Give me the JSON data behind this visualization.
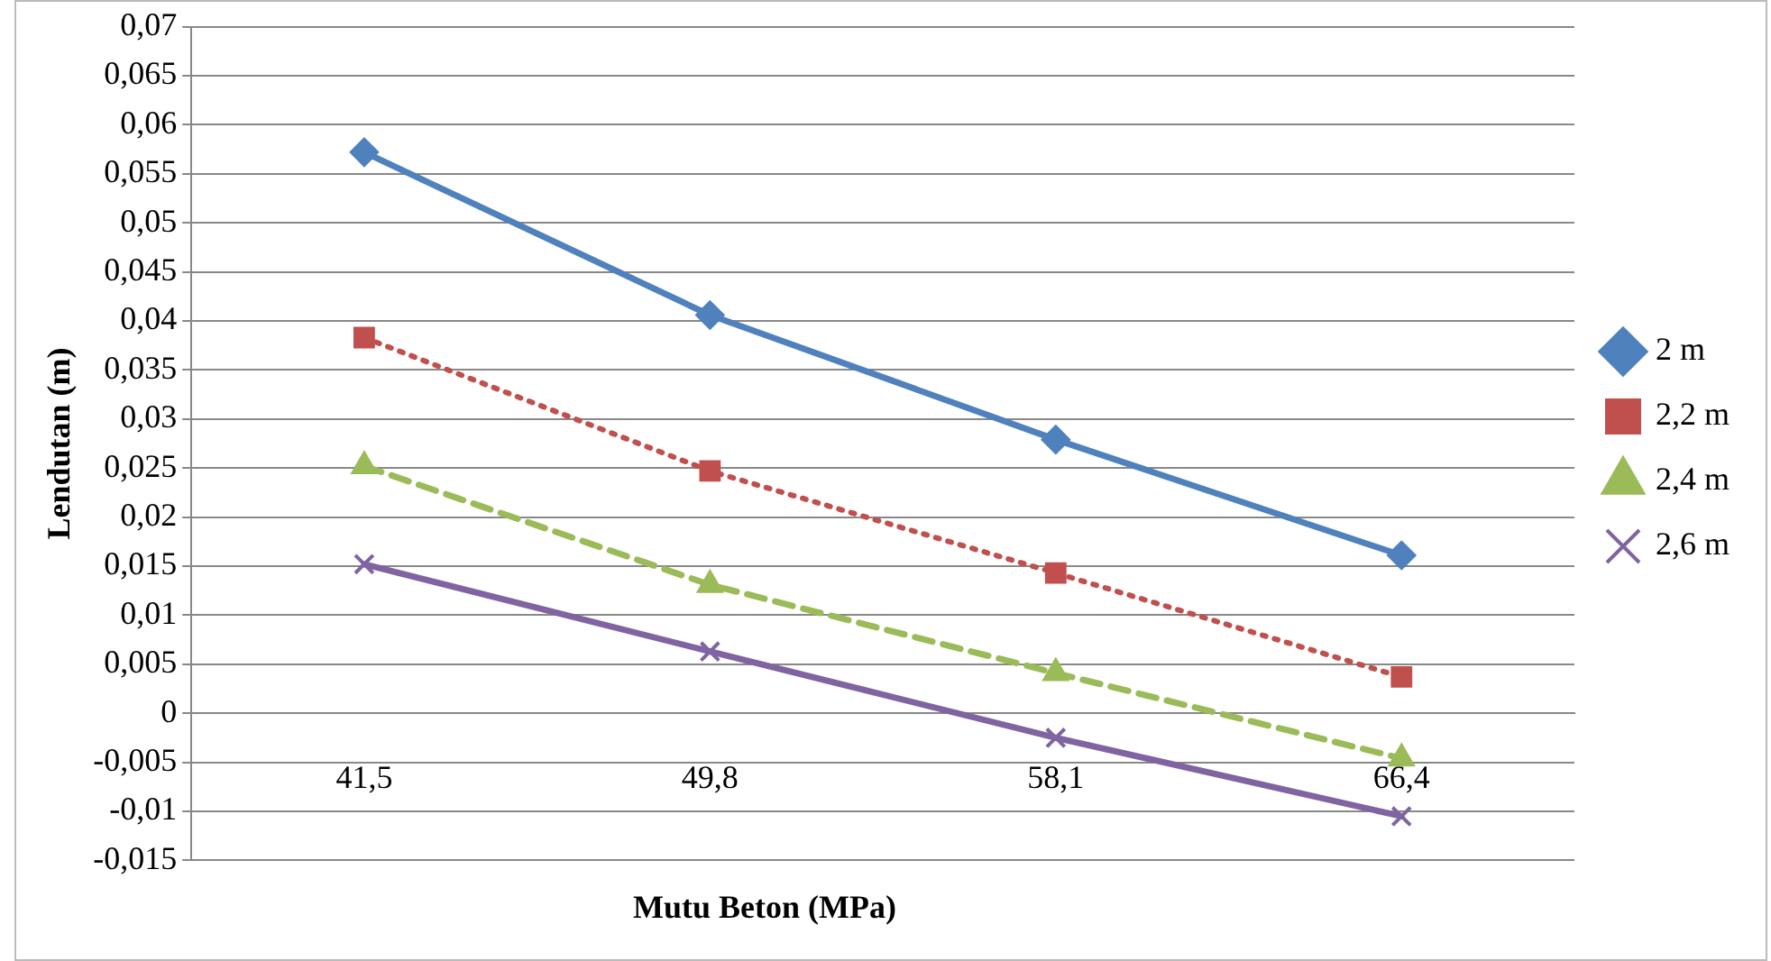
{
  "chart_data": {
    "type": "line",
    "xlabel": "Mutu Beton (MPa)",
    "ylabel": "Lendutan (m)",
    "categories": [
      "41,5",
      "49,8",
      "58,1",
      "66,4"
    ],
    "series": [
      {
        "name": "2 m",
        "color": "#4f81bd",
        "values": [
          0.0572,
          0.0406,
          0.0279,
          0.0161
        ],
        "marker": "diamond",
        "line_style": "solid"
      },
      {
        "name": "2,2 m",
        "color": "#c0504d",
        "values": [
          0.0383,
          0.0247,
          0.0143,
          0.0037
        ],
        "marker": "square",
        "line_style": "dotted"
      },
      {
        "name": "2,4 m",
        "color": "#9bbb59",
        "values": [
          0.0252,
          0.0131,
          0.0041,
          -0.0046
        ],
        "marker": "triangle",
        "line_style": "dashed"
      },
      {
        "name": "2,6 m",
        "color": "#8064a2",
        "values": [
          0.0152,
          0.0063,
          -0.0025,
          -0.0105
        ],
        "marker": "cross",
        "line_style": "solid"
      }
    ],
    "ylim": [
      -0.015,
      0.07
    ],
    "yticks": [
      {
        "value": -0.015,
        "label": "-0,015"
      },
      {
        "value": -0.01,
        "label": "-0,01"
      },
      {
        "value": -0.005,
        "label": "-0,005"
      },
      {
        "value": 0,
        "label": "0"
      },
      {
        "value": 0.005,
        "label": "0,005"
      },
      {
        "value": 0.01,
        "label": "0,01"
      },
      {
        "value": 0.015,
        "label": "0,015"
      },
      {
        "value": 0.02,
        "label": "0,02"
      },
      {
        "value": 0.025,
        "label": "0,025"
      },
      {
        "value": 0.03,
        "label": "0,03"
      },
      {
        "value": 0.035,
        "label": "0,035"
      },
      {
        "value": 0.04,
        "label": "0,04"
      },
      {
        "value": 0.045,
        "label": "0,045"
      },
      {
        "value": 0.05,
        "label": "0,05"
      },
      {
        "value": 0.055,
        "label": "0,055"
      },
      {
        "value": 0.06,
        "label": "0,06"
      },
      {
        "value": 0.065,
        "label": "0,065"
      },
      {
        "value": 0.07,
        "label": "0,07"
      }
    ],
    "grid": "y",
    "legend": "right"
  }
}
